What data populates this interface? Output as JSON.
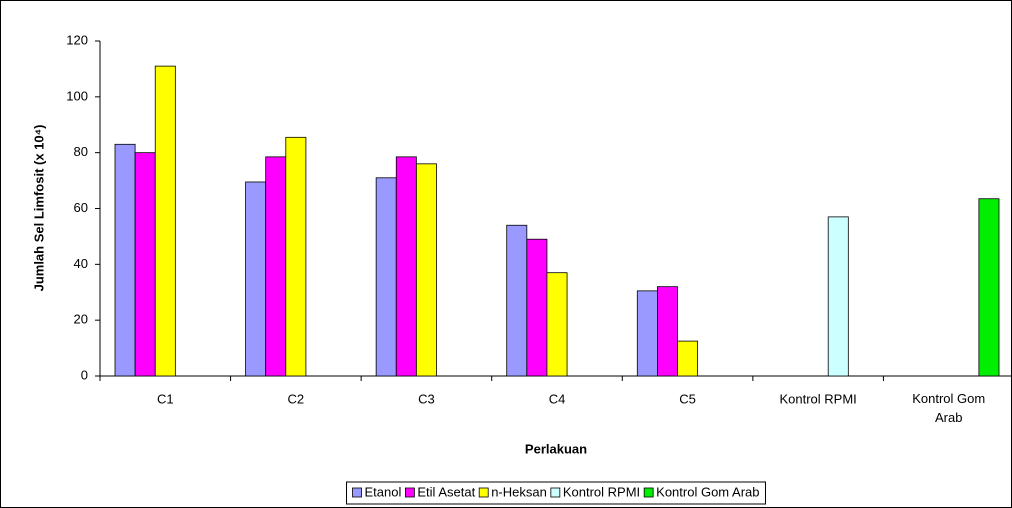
{
  "chart_data": {
    "type": "bar",
    "x_label": "Perlakuan",
    "y_label": "Jumlah Sel Limfosit (x 10⁴)",
    "categories": [
      "C1",
      "C2",
      "C3",
      "C4",
      "C5",
      "Kontrol RPMI",
      "Kontrol Gom Arab"
    ],
    "series": [
      {
        "name": "Etanol",
        "color": "#9999ff",
        "values": [
          83,
          69.5,
          71,
          54,
          30.5,
          null,
          null
        ]
      },
      {
        "name": "Etil Asetat",
        "color": "#ff00ff",
        "values": [
          80,
          78.5,
          78.5,
          49,
          32,
          null,
          null
        ]
      },
      {
        "name": "n-Heksan",
        "color": "#ffff00",
        "values": [
          111,
          85.5,
          76,
          37,
          12.5,
          null,
          null
        ]
      },
      {
        "name": "Kontrol RPMI",
        "color": "#ccffff",
        "values": [
          null,
          null,
          null,
          null,
          null,
          57,
          null
        ]
      },
      {
        "name": "Kontrol Gom Arab",
        "color": "#00ee00",
        "values": [
          null,
          null,
          null,
          null,
          null,
          null,
          63.5
        ]
      }
    ],
    "ylim": [
      0,
      120
    ],
    "yticks": [
      0,
      20,
      40,
      60,
      80,
      100,
      120
    ],
    "legend": "bottom"
  }
}
